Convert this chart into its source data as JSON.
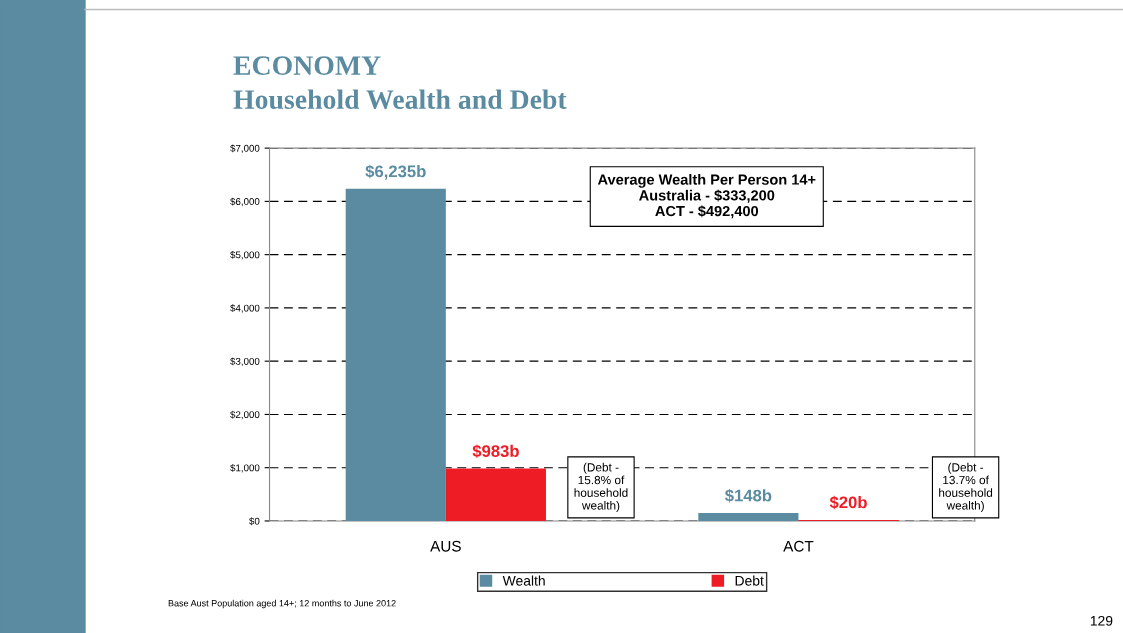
{
  "chart_data": {
    "type": "bar",
    "title": "ECONOMY",
    "subtitle": "Household Wealth and Debt",
    "categories": [
      "AUS",
      "ACT"
    ],
    "series": [
      {
        "name": "Wealth",
        "color": "#5a8ba1",
        "values": [
          6235,
          148
        ],
        "value_labels": [
          "$6,235b",
          "$148b"
        ]
      },
      {
        "name": "Debt",
        "color": "#ee1c25",
        "values": [
          983,
          20
        ],
        "value_labels": [
          "$983b",
          "$20b"
        ]
      }
    ],
    "ylim": [
      0,
      7000
    ],
    "yticks": [
      {
        "value": 0,
        "label": "$0"
      },
      {
        "value": 1000,
        "label": "$1,000"
      },
      {
        "value": 2000,
        "label": "$2,000"
      },
      {
        "value": 3000,
        "label": "$3,000"
      },
      {
        "value": 4000,
        "label": "$4,000"
      },
      {
        "value": 5000,
        "label": "$5,000"
      },
      {
        "value": 6000,
        "label": "$6,000"
      },
      {
        "value": 7000,
        "label": "$7,000"
      }
    ],
    "grid": "y",
    "legend": "bottom",
    "annotations": [
      "Average Wealth Per Person 14+\nAustralia - $333,200\nACT - $492,400",
      "(Debt -\n15.8% of\nhousehold\nwealth)",
      "(Debt -\n13.7% of\nhousehold\nwealth)",
      "Base Aust Population aged 14+; 12 months to June 2012",
      "129"
    ]
  }
}
